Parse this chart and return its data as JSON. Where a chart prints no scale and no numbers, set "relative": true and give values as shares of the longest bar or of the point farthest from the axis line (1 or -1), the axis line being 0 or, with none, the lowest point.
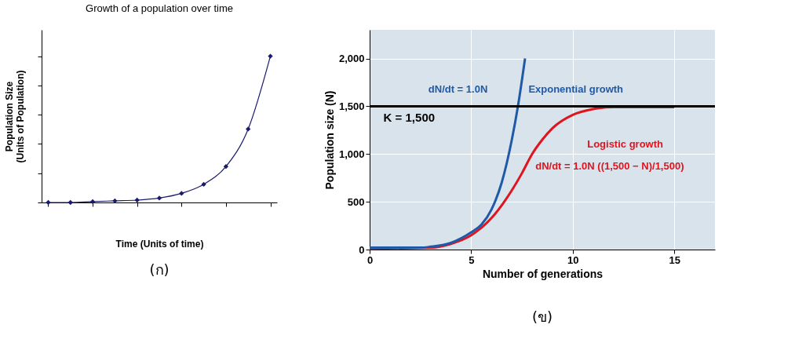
{
  "chart_data": [
    {
      "type": "line",
      "title": "Growth of a population over time",
      "xlabel": "Time (Units of time)",
      "ylabel": "Population Size\n(Units of Population)",
      "relative": true,
      "marker": "diamond",
      "legend": false,
      "grid": false,
      "categories": [
        null,
        null,
        null,
        null,
        null,
        null,
        null,
        null,
        null,
        null,
        null
      ],
      "series": [
        {
          "color": "#1a1a6e",
          "values": [
            0,
            0,
            0.006,
            0.011,
            0.016,
            0.03,
            0.062,
            0.124,
            0.246,
            0.502,
            1
          ]
        }
      ],
      "annotations": [
        "(ก)"
      ]
    },
    {
      "type": "line",
      "xlabel": "Number of generations",
      "ylabel": "Population size (N)",
      "xlim": [
        0,
        17
      ],
      "ylim": [
        0,
        2300
      ],
      "xticks": [
        0,
        5,
        10,
        15
      ],
      "yticks": [
        0,
        500,
        {
          "value": 1000,
          "label": "1,000"
        },
        {
          "value": 1500,
          "label": "1,500"
        },
        {
          "value": 2000,
          "label": "2,000"
        }
      ],
      "grid": true,
      "legend": false,
      "series": [
        {
          "name": "Exponential growth",
          "color": "#1f5aa8",
          "x": [
            0,
            2.5,
            3,
            4,
            5,
            5.5,
            6,
            6.5,
            7,
            7.3,
            7.65
          ],
          "values": [
            20,
            20,
            30,
            70,
            180,
            260,
            420,
            700,
            1150,
            1500,
            2000
          ]
        },
        {
          "name": "Logistic growth",
          "color": "#e0141e",
          "x": [
            0,
            3,
            4,
            5,
            6,
            7,
            7.5,
            8,
            8.5,
            9,
            10,
            11,
            12,
            13,
            15
          ],
          "values": [
            10,
            20,
            60,
            150,
            330,
            620,
            800,
            1000,
            1150,
            1270,
            1410,
            1470,
            1490,
            1490,
            1490
          ]
        }
      ],
      "ref_lines": [
        {
          "axis": "y",
          "value": 1500,
          "label": "K = 1,500",
          "color": "#000000"
        }
      ],
      "annotations": [
        "dN/dt = 1.0N",
        "dN/dt = 1.0N ((1,500 − N)/1,500)",
        "(ข)"
      ]
    }
  ]
}
